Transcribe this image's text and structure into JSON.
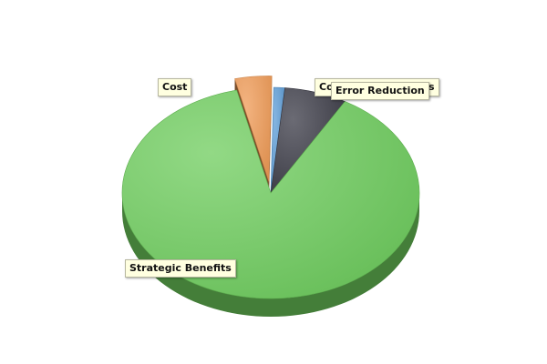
{
  "chart_data": {
    "type": "pie",
    "style": "3d",
    "legend": "none",
    "series": [
      {
        "name": "",
        "slices": [
          {
            "label": "Commission Process",
            "value": 1.2,
            "color": "#5b9bd5",
            "exploded": false
          },
          {
            "label": "Error Reduction",
            "value": 6.8,
            "color": "#3a3a45",
            "exploded": false
          },
          {
            "label": "Strategic Benefits",
            "value": 88.0,
            "color": "#6dcc5c",
            "exploded": false
          },
          {
            "label": "Cost",
            "value": 4.0,
            "color": "#ef9a55",
            "exploded": true
          }
        ]
      }
    ]
  }
}
